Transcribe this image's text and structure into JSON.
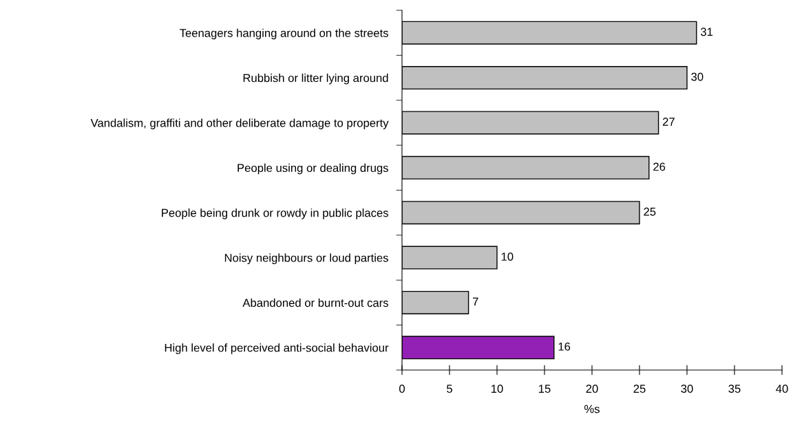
{
  "chart_data": {
    "type": "bar",
    "orientation": "horizontal",
    "categories": [
      "Teenagers hanging around on the streets",
      "Rubbish or litter lying around",
      "Vandalism, graffiti and other deliberate damage to property",
      "People using or dealing drugs",
      "People being drunk or rowdy in public places",
      "Noisy neighbours or loud parties",
      "Abandoned or burnt-out cars",
      "High level of perceived anti-social behaviour"
    ],
    "values": [
      31,
      30,
      27,
      26,
      25,
      10,
      7,
      16
    ],
    "colors": [
      "#c0c0c0",
      "#c0c0c0",
      "#c0c0c0",
      "#c0c0c0",
      "#c0c0c0",
      "#c0c0c0",
      "#c0c0c0",
      "#9321b5"
    ],
    "xlabel": "%s",
    "xlim": [
      0,
      40
    ],
    "xticks": [
      0,
      5,
      10,
      15,
      20,
      25,
      30,
      35,
      40
    ],
    "data_labels": true,
    "grid": false,
    "legend": false
  }
}
